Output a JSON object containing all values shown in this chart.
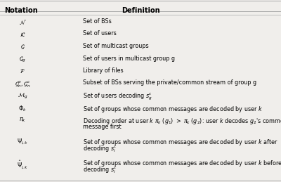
{
  "title_notation": "Notation",
  "title_definition": "Definition",
  "background_color": "#f0eeeb",
  "header_line_color": "#aaaaaa",
  "rows": [
    {
      "notation": "$\\mathcal{N}$",
      "definition": "Set of BSs",
      "lines": 1
    },
    {
      "notation": "$\\mathcal{K}$",
      "definition": "Set of users",
      "lines": 1
    },
    {
      "notation": "$\\mathcal{G}$",
      "definition": "Set of multicast groups",
      "lines": 1
    },
    {
      "notation": "$\\mathcal{G}_g$",
      "definition": "Set of users in multicast group g",
      "lines": 1
    },
    {
      "notation": "$\\mathcal{F}$",
      "definition": "Library of files",
      "lines": 1
    },
    {
      "notation": "$\\mathcal{G}_n^p, \\mathcal{G}_n^c$",
      "definition": "Subset of BSs serving the private/common stream of group g",
      "lines": 1
    },
    {
      "notation": "$\\mathcal{M}_g$",
      "definition": "Set of users decoding $s_g^c$",
      "lines": 1
    },
    {
      "notation": "$\\Phi_k$",
      "definition": "Set of groups whose common messages are decoded by user $k$",
      "lines": 1
    },
    {
      "notation": "$\\pi_k$",
      "definition_line1": "Decoding order at user $k$ $\\pi_k$ ($g_1$) $>$ $\\pi_k$ ($g_2$): user $k$ decodes $g_2$'s common",
      "definition_line2": "message first",
      "lines": 2
    },
    {
      "notation": "$\\Psi_{i,k}$",
      "definition_line1": "Set of groups whose common messages are decoded by user $k$ after",
      "definition_line2": "decoding $s_i^c$",
      "lines": 2
    },
    {
      "notation": "$\\hat{\\Psi}_{i,k}$",
      "definition_line1": "Set of groups whose common messages are decoded by user $k$ before",
      "definition_line2": "decoding $s_i^c$",
      "lines": 2
    }
  ]
}
